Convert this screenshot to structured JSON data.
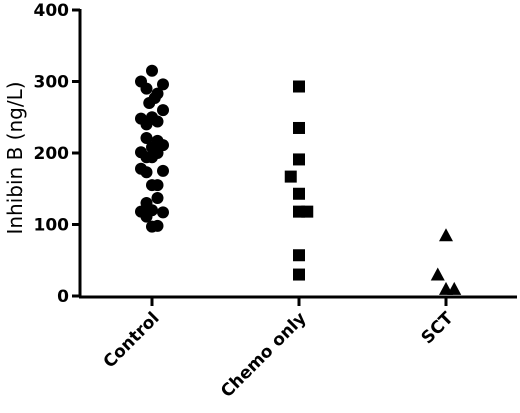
{
  "chart_data": {
    "type": "scatter",
    "ylabel": "Inhibin B (ng/L)",
    "xlabel": "",
    "ylim": [
      0,
      400
    ],
    "yticks": [
      0,
      100,
      200,
      300,
      400
    ],
    "categories": [
      "Control",
      "Chemo only",
      "SCT"
    ],
    "grid": false,
    "series": [
      {
        "category": "Control",
        "marker": "circle",
        "points": [
          {
            "x": -0.2,
            "y": 300
          },
          {
            "x": -0.1,
            "y": 290
          },
          {
            "x": 0.0,
            "y": 315
          },
          {
            "x": 0.1,
            "y": 283
          },
          {
            "x": 0.2,
            "y": 296
          },
          {
            "x": -0.05,
            "y": 270
          },
          {
            "x": 0.05,
            "y": 277
          },
          {
            "x": -0.2,
            "y": 248
          },
          {
            "x": -0.1,
            "y": 240
          },
          {
            "x": 0.0,
            "y": 250
          },
          {
            "x": 0.1,
            "y": 244
          },
          {
            "x": 0.2,
            "y": 260
          },
          {
            "x": -0.1,
            "y": 221
          },
          {
            "x": 0.0,
            "y": 208
          },
          {
            "x": 0.1,
            "y": 217
          },
          {
            "x": -0.2,
            "y": 201
          },
          {
            "x": -0.1,
            "y": 194
          },
          {
            "x": 0.0,
            "y": 194
          },
          {
            "x": 0.1,
            "y": 200
          },
          {
            "x": 0.2,
            "y": 211
          },
          {
            "x": -0.2,
            "y": 178
          },
          {
            "x": -0.1,
            "y": 173
          },
          {
            "x": 0.0,
            "y": 155
          },
          {
            "x": 0.1,
            "y": 155
          },
          {
            "x": 0.2,
            "y": 175
          },
          {
            "x": -0.2,
            "y": 118
          },
          {
            "x": -0.1,
            "y": 130
          },
          {
            "x": 0.0,
            "y": 120
          },
          {
            "x": 0.1,
            "y": 137
          },
          {
            "x": 0.2,
            "y": 117
          },
          {
            "x": -0.1,
            "y": 111
          },
          {
            "x": 0.0,
            "y": 97
          },
          {
            "x": 0.1,
            "y": 98
          }
        ]
      },
      {
        "category": "Chemo only",
        "marker": "square",
        "points": [
          {
            "x": 0.0,
            "y": 293
          },
          {
            "x": 0.0,
            "y": 235
          },
          {
            "x": 0.0,
            "y": 191
          },
          {
            "x": -0.15,
            "y": 167
          },
          {
            "x": 0.0,
            "y": 143
          },
          {
            "x": 0.0,
            "y": 118
          },
          {
            "x": 0.15,
            "y": 118
          },
          {
            "x": 0.0,
            "y": 57
          },
          {
            "x": 0.0,
            "y": 30
          }
        ]
      },
      {
        "category": "SCT",
        "marker": "triangle",
        "points": [
          {
            "x": 0.0,
            "y": 85
          },
          {
            "x": -0.15,
            "y": 30
          },
          {
            "x": 0.0,
            "y": 10
          },
          {
            "x": 0.15,
            "y": 10
          }
        ]
      }
    ]
  }
}
